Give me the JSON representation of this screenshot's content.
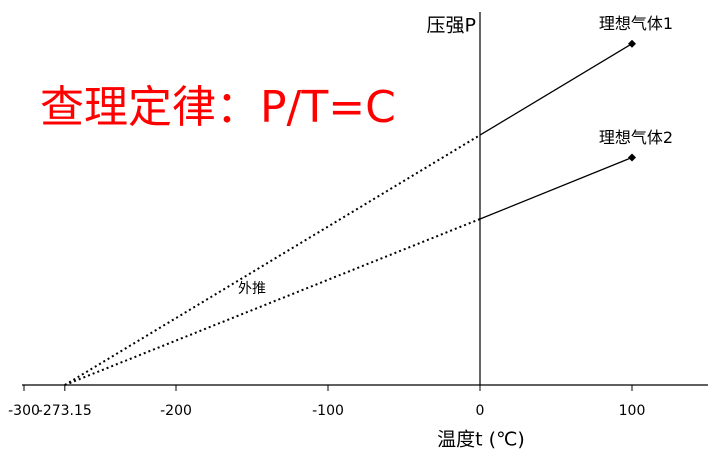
{
  "chart_data": {
    "type": "line",
    "title": "查理定律：P/T=C",
    "title_color": "#ff0000",
    "y_label": "压强P",
    "x_label": "温度t (℃)",
    "annotation": "外推",
    "xlim": [
      -300,
      150
    ],
    "xticks": [
      -300,
      -273.15,
      -200,
      -100,
      0,
      100
    ],
    "ylim": [
      0,
      100
    ],
    "series": [
      {
        "name": "理想气体1",
        "color": "#000000",
        "x": [
          -273.15,
          0,
          100
        ],
        "values": [
          0,
          67,
          91.5
        ],
        "line_styles": [
          "dotted",
          "solid"
        ]
      },
      {
        "name": "理想气体2",
        "color": "#000000",
        "x": [
          -273.15,
          0,
          100
        ],
        "values": [
          0,
          44.5,
          61
        ],
        "line_styles": [
          "dotted",
          "solid"
        ]
      }
    ]
  }
}
